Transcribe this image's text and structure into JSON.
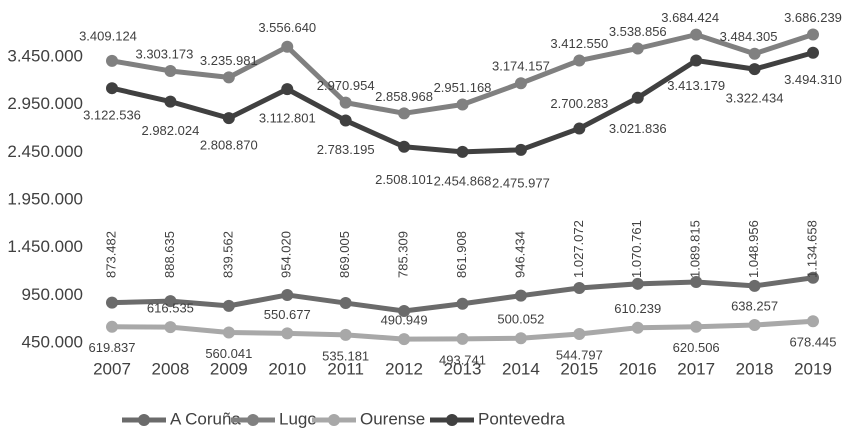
{
  "chart_data": {
    "type": "line",
    "categories": [
      "2007",
      "2008",
      "2009",
      "2010",
      "2011",
      "2012",
      "2013",
      "2014",
      "2015",
      "2016",
      "2017",
      "2018",
      "2019"
    ],
    "ylim": [
      450000,
      3950000
    ],
    "yticks": [
      {
        "value": 450000,
        "label": "450.000"
      },
      {
        "value": 950000,
        "label": "950.000"
      },
      {
        "value": 1450000,
        "label": "1.450.000"
      },
      {
        "value": 1950000,
        "label": "1.950.000"
      },
      {
        "value": 2450000,
        "label": "2.450.000"
      },
      {
        "value": 2950000,
        "label": "2.950.000"
      },
      {
        "value": 3450000,
        "label": "3.450.000"
      }
    ],
    "grid": false,
    "legend": "bottom",
    "series": [
      {
        "name": "A Coruña",
        "color": "#6b6b6b",
        "values": [
          873482,
          888635,
          839562,
          954020,
          869005,
          785309,
          861908,
          946434,
          1027072,
          1070761,
          1089815,
          1048956,
          1134658
        ],
        "value_labels": [
          "873.482",
          "888.635",
          "839.562",
          "954.020",
          "869.005",
          "785.309",
          "861.908",
          "946.434",
          "1.027.072",
          "1.070.761",
          "1.089.815",
          "1.048.956",
          "1.134.658"
        ]
      },
      {
        "name": "Lugo",
        "color": "#808080",
        "values": [
          3409124,
          3303173,
          3235981,
          3556640,
          2970954,
          2858968,
          2951168,
          3174157,
          3412550,
          3538856,
          3684424,
          3484305,
          3686239
        ],
        "value_labels": [
          "3.409.124",
          "3.303.173",
          "3.235.981",
          "3.556.640",
          "2.970.954",
          "2.858.968",
          "2.951.168",
          "3.174.157",
          "3.412.550",
          "3.538.856",
          "3.684.424",
          "3.484.305",
          "3.686.239"
        ]
      },
      {
        "name": "Ourense",
        "color": "#a8a8a8",
        "values": [
          619837,
          616535,
          560041,
          550677,
          535181,
          490949,
          493741,
          500052,
          544797,
          610239,
          620506,
          638257,
          678445
        ],
        "value_labels": [
          "619.837",
          "616.535",
          "560.041",
          "550.677",
          "535.181",
          "490.949",
          "493.741",
          "500.052",
          "544.797",
          "610.239",
          "620.506",
          "638.257",
          "678.445"
        ]
      },
      {
        "name": "Pontevedra",
        "color": "#404040",
        "values": [
          3122536,
          2982024,
          2808870,
          3112801,
          2783195,
          2508101,
          2454868,
          2475977,
          2700283,
          3021836,
          3413179,
          3322434,
          3494310
        ],
        "value_labels": [
          "3.122.536",
          "2.982.024",
          "2.808.870",
          "3.112.801",
          "2.783.195",
          "2.508.101",
          "2.454.868",
          "2.475.977",
          "2.700.283",
          "3.021.836",
          "3.413.179",
          "3.322.434",
          "3.494.310"
        ]
      }
    ]
  }
}
